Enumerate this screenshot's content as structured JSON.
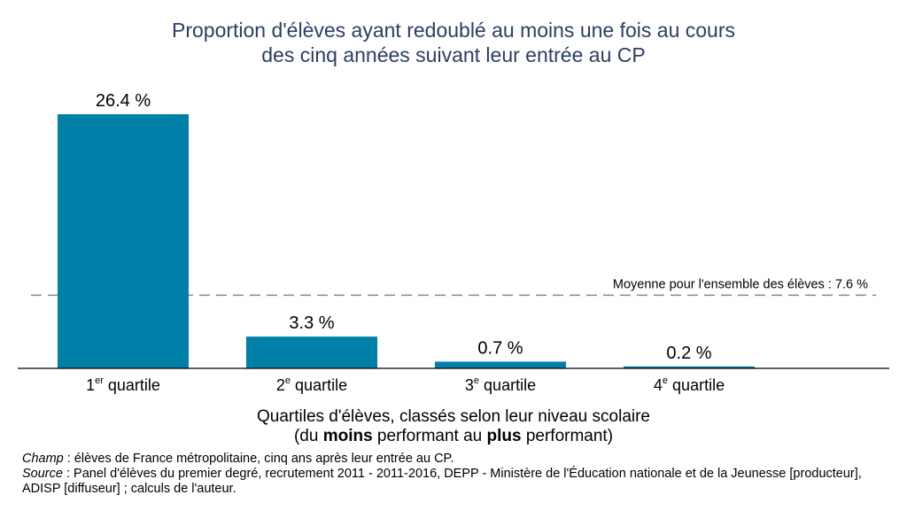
{
  "chart_data": {
    "type": "bar",
    "title_line1": "Proportion d'élèves ayant redoublé au moins une fois au cours",
    "title_line2": "des cinq années suivant leur entrée au CP",
    "categories": [
      {
        "num": "1",
        "sup": "er",
        "word": "quartile"
      },
      {
        "num": "2",
        "sup": "e",
        "word": "quartile"
      },
      {
        "num": "3",
        "sup": "e",
        "word": "quartile"
      },
      {
        "num": "4",
        "sup": "e",
        "word": "quartile"
      }
    ],
    "values": [
      26.4,
      3.3,
      0.7,
      0.2
    ],
    "value_labels": [
      "26.4 %",
      "3.3 %",
      "0.7 %",
      "0.2 %"
    ],
    "ylim": [
      0,
      26.4
    ],
    "reference_line": {
      "value": 7.6,
      "label": "Moyenne pour l'ensemble des élèves : 7.6 %"
    },
    "xlabel_line1": "Quartiles d'élèves, classés selon leur niveau scolaire",
    "xlabel_line2": {
      "pre": "(du ",
      "bold1": "moins",
      "mid": " performant au ",
      "bold2": "plus",
      "post": " performant)"
    },
    "grid": false,
    "bar_color": "#0080a8",
    "title_color": "#2c3e63"
  },
  "footer": {
    "champ_label": "Champ",
    "champ_text": " : élèves de France métropolitaine, cinq ans après leur entrée au CP.",
    "source_label": "Source",
    "source_text": " : Panel d'élèves du premier degré, recrutement 2011 - 2011-2016, DEPP - Ministère de l'Éducation nationale et de la Jeunesse [producteur], ADISP [diffuseur] ; calculs de l'auteur."
  }
}
